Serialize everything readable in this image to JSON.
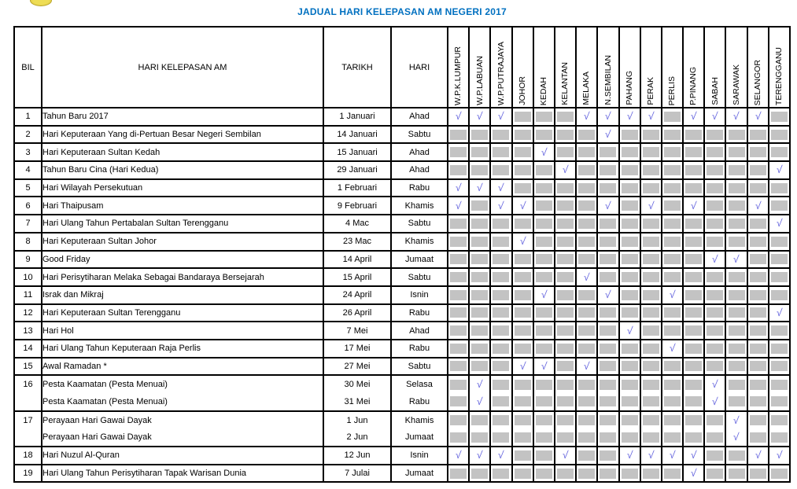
{
  "page": {
    "title": "JADUAL HARI KELEPASAN AM NEGERI 2017",
    "title_color": "#0070C0"
  },
  "table": {
    "headers": {
      "bil": "BIL",
      "name": "HARI KELEPASAN AM",
      "tarikh": "TARIKH",
      "hari": "HARI"
    },
    "states": [
      "W.P.K.LUMPUR",
      "W.P.LABUAN",
      "W.P.PUTRAJAYA",
      "JOHOR",
      "KEDAH",
      "KELANTAN",
      "MELAKA",
      "N.SEMBILAN",
      "PAHANG",
      "PERAK",
      "PERLIS",
      "P.PINANG",
      "SABAH",
      "SARAWAK",
      "SELANGOR",
      "TERENGGANU"
    ],
    "check_symbol": "√",
    "check_color": "#5c5cdc",
    "empty_box_color": "#c3c3c3",
    "rows": [
      {
        "bil": "1",
        "name": "Tahun Baru 2017",
        "tarikh": "1 Januari",
        "hari": "Ahad",
        "line": "single",
        "marks": [
          1,
          1,
          1,
          0,
          0,
          0,
          1,
          1,
          1,
          1,
          0,
          1,
          1,
          1,
          1,
          0
        ]
      },
      {
        "bil": "2",
        "name": "Hari Keputeraan Yang di-Pertuan Besar Negeri Sembilan",
        "tarikh": "14 Januari",
        "hari": "Sabtu",
        "line": "single",
        "marks": [
          0,
          0,
          0,
          0,
          0,
          0,
          0,
          1,
          0,
          0,
          0,
          0,
          0,
          0,
          0,
          0
        ]
      },
      {
        "bil": "3",
        "name": "Hari Keputeraan Sultan Kedah",
        "tarikh": "15 Januari",
        "hari": "Ahad",
        "line": "single",
        "marks": [
          0,
          0,
          0,
          0,
          1,
          0,
          0,
          0,
          0,
          0,
          0,
          0,
          0,
          0,
          0,
          0
        ]
      },
      {
        "bil": "4",
        "name": "Tahun Baru Cina (Hari Kedua)",
        "tarikh": "29 Januari",
        "hari": "Ahad",
        "line": "single",
        "marks": [
          0,
          0,
          0,
          0,
          0,
          1,
          0,
          0,
          0,
          0,
          0,
          0,
          0,
          0,
          0,
          1
        ]
      },
      {
        "bil": "5",
        "name": "Hari Wilayah Persekutuan",
        "tarikh": "1 Februari",
        "hari": "Rabu",
        "line": "single",
        "marks": [
          1,
          1,
          1,
          0,
          0,
          0,
          0,
          0,
          0,
          0,
          0,
          0,
          0,
          0,
          0,
          0
        ]
      },
      {
        "bil": "6",
        "name": "Hari Thaipusam",
        "tarikh": "9 Februari",
        "hari": "Khamis",
        "line": "single",
        "marks": [
          1,
          0,
          1,
          1,
          0,
          0,
          0,
          1,
          0,
          1,
          0,
          1,
          0,
          0,
          1,
          0
        ]
      },
      {
        "bil": "7",
        "name": "Hari Ulang Tahun Pertabalan Sultan Terengganu",
        "tarikh": "4 Mac",
        "hari": "Sabtu",
        "line": "single",
        "marks": [
          0,
          0,
          0,
          0,
          0,
          0,
          0,
          0,
          0,
          0,
          0,
          0,
          0,
          0,
          0,
          1
        ]
      },
      {
        "bil": "8",
        "name": "Hari Keputeraan Sultan Johor",
        "tarikh": "23 Mac",
        "hari": "Khamis",
        "line": "single",
        "marks": [
          0,
          0,
          0,
          1,
          0,
          0,
          0,
          0,
          0,
          0,
          0,
          0,
          0,
          0,
          0,
          0
        ]
      },
      {
        "bil": "9",
        "name": "Good Friday",
        "tarikh": "14 April",
        "hari": "Jumaat",
        "line": "single",
        "marks": [
          0,
          0,
          0,
          0,
          0,
          0,
          0,
          0,
          0,
          0,
          0,
          0,
          1,
          1,
          0,
          0
        ]
      },
      {
        "bil": "10",
        "name": "Hari Perisytiharan Melaka Sebagai Bandaraya Bersejarah",
        "tarikh": "15 April",
        "hari": "Sabtu",
        "line": "single",
        "marks": [
          0,
          0,
          0,
          0,
          0,
          0,
          1,
          0,
          0,
          0,
          0,
          0,
          0,
          0,
          0,
          0
        ]
      },
      {
        "bil": "11",
        "name": "Israk dan Mikraj",
        "tarikh": "24 April",
        "hari": "Isnin",
        "line": "single",
        "marks": [
          0,
          0,
          0,
          0,
          1,
          0,
          0,
          1,
          0,
          0,
          1,
          0,
          0,
          0,
          0,
          0
        ]
      },
      {
        "bil": "12",
        "name": "Hari Keputeraan Sultan Terengganu",
        "tarikh": "26 April",
        "hari": "Rabu",
        "line": "single",
        "marks": [
          0,
          0,
          0,
          0,
          0,
          0,
          0,
          0,
          0,
          0,
          0,
          0,
          0,
          0,
          0,
          1
        ]
      },
      {
        "bil": "13",
        "name": "Hari Hol",
        "tarikh": "7 Mei",
        "hari": "Ahad",
        "line": "single",
        "marks": [
          0,
          0,
          0,
          0,
          0,
          0,
          0,
          0,
          1,
          0,
          0,
          0,
          0,
          0,
          0,
          0
        ]
      },
      {
        "bil": "14",
        "name": "Hari Ulang Tahun Keputeraan Raja Perlis",
        "tarikh": "17 Mei",
        "hari": "Rabu",
        "line": "single",
        "marks": [
          0,
          0,
          0,
          0,
          0,
          0,
          0,
          0,
          0,
          0,
          1,
          0,
          0,
          0,
          0,
          0
        ]
      },
      {
        "bil": "15",
        "name": "Awal Ramadan *",
        "tarikh": "27 Mei",
        "hari": "Sabtu",
        "line": "single",
        "marks": [
          0,
          0,
          0,
          1,
          1,
          0,
          1,
          0,
          0,
          0,
          0,
          0,
          0,
          0,
          0,
          0
        ]
      },
      {
        "bil": "16",
        "name": "Pesta Kaamatan (Pesta Menuai)",
        "tarikh": "30 Mei",
        "hari": "Selasa",
        "line": "top",
        "marks": [
          0,
          1,
          0,
          0,
          0,
          0,
          0,
          0,
          0,
          0,
          0,
          0,
          1,
          0,
          0,
          0
        ]
      },
      {
        "bil": "",
        "name": "Pesta Kaamatan (Pesta Menuai)",
        "tarikh": "31 Mei",
        "hari": "Rabu",
        "line": "bottom",
        "marks": [
          0,
          1,
          0,
          0,
          0,
          0,
          0,
          0,
          0,
          0,
          0,
          0,
          1,
          0,
          0,
          0
        ]
      },
      {
        "bil": "17",
        "name": "Perayaan Hari Gawai Dayak",
        "tarikh": "1 Jun",
        "hari": "Khamis",
        "line": "top",
        "marks": [
          0,
          0,
          0,
          0,
          0,
          0,
          0,
          0,
          0,
          0,
          0,
          0,
          0,
          1,
          0,
          0
        ]
      },
      {
        "bil": "",
        "name": "Perayaan Hari Gawai Dayak",
        "tarikh": "2 Jun",
        "hari": "Jumaat",
        "line": "bottom",
        "marks": [
          0,
          0,
          0,
          0,
          0,
          0,
          0,
          0,
          0,
          0,
          0,
          0,
          0,
          1,
          0,
          0
        ]
      },
      {
        "bil": "18",
        "name": "Hari Nuzul Al-Quran",
        "tarikh": "12 Jun",
        "hari": "Isnin",
        "line": "single",
        "marks": [
          1,
          1,
          1,
          0,
          0,
          1,
          0,
          0,
          1,
          1,
          1,
          1,
          0,
          0,
          1,
          1
        ]
      },
      {
        "bil": "19",
        "name": "Hari Ulang Tahun Perisytiharan Tapak Warisan Dunia",
        "tarikh": "7 Julai",
        "hari": "Jumaat",
        "line": "single",
        "marks": [
          0,
          0,
          0,
          0,
          0,
          0,
          0,
          0,
          0,
          0,
          0,
          1,
          0,
          0,
          0,
          0
        ]
      }
    ]
  }
}
